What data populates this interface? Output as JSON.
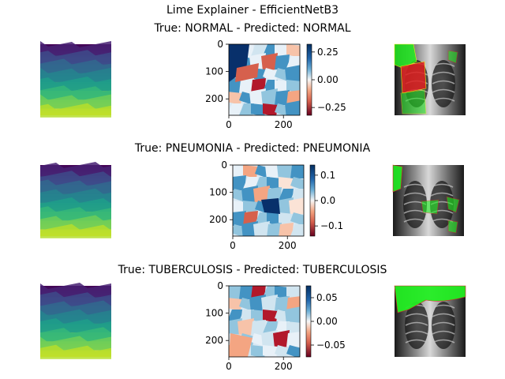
{
  "suptitle": "Lime Explainer - EfficientNetB3",
  "colors": {
    "positive_overlay": "#22ee22",
    "negative_overlay": "#e02020",
    "boundary": "#ffff00"
  },
  "chart_data": [
    {
      "type": "heatmap",
      "title": "True: NORMAL - Predicted: NORMAL",
      "panels": [
        "segmentation",
        "lime_weight_map",
        "xray_overlay"
      ],
      "segmentation_cmap": "viridis",
      "weight_cmap": "RdBu",
      "xlim": [
        0,
        260
      ],
      "ylim": [
        260,
        0
      ],
      "x_ticks": [
        0,
        200
      ],
      "y_ticks": [
        0,
        100,
        200
      ],
      "colorbar": {
        "range": [
          -0.32,
          0.32
        ],
        "ticks": [
          0.25,
          0.0,
          -0.25
        ],
        "tick_labels": [
          "0.25",
          "0.00",
          "−0.25"
        ]
      }
    },
    {
      "type": "heatmap",
      "title": "True: PNEUMONIA - Predicted: PNEUMONIA",
      "panels": [
        "segmentation",
        "lime_weight_map",
        "xray_overlay"
      ],
      "segmentation_cmap": "viridis",
      "weight_cmap": "RdBu",
      "xlim": [
        0,
        260
      ],
      "ylim": [
        260,
        0
      ],
      "x_ticks": [
        0,
        200
      ],
      "y_ticks": [
        0,
        100,
        200
      ],
      "colorbar": {
        "range": [
          -0.14,
          0.14
        ],
        "ticks": [
          0.1,
          0.0,
          -0.1
        ],
        "tick_labels": [
          "0.1",
          "0.0",
          "−0.1"
        ]
      }
    },
    {
      "type": "heatmap",
      "title": "True: TUBERCULOSIS - Predicted: TUBERCULOSIS",
      "panels": [
        "segmentation",
        "lime_weight_map",
        "xray_overlay"
      ],
      "segmentation_cmap": "viridis",
      "weight_cmap": "RdBu",
      "xlim": [
        0,
        260
      ],
      "ylim": [
        260,
        0
      ],
      "x_ticks": [
        0,
        200
      ],
      "y_ticks": [
        0,
        100,
        200
      ],
      "colorbar": {
        "range": [
          -0.075,
          0.075
        ],
        "ticks": [
          0.05,
          0.0,
          -0.05
        ],
        "tick_labels": [
          "0.05",
          "0.00",
          "−0.05"
        ]
      }
    }
  ]
}
